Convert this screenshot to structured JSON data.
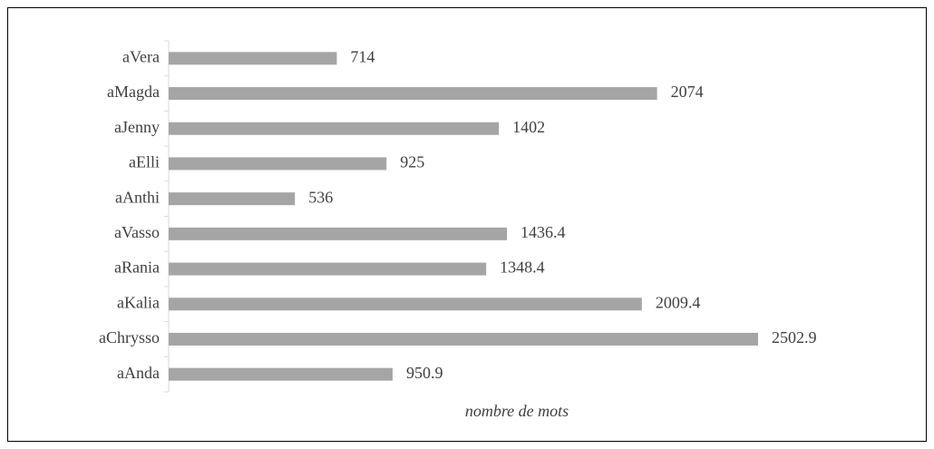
{
  "chart_data": {
    "type": "bar",
    "orientation": "horizontal",
    "x_label": "nombre de mots",
    "categories": [
      "aVera",
      "aMagda",
      "aJenny",
      "aElli",
      "aAnthi",
      "aVasso",
      "aRania",
      "aKalia",
      "aChrysso",
      "aAnda"
    ],
    "values": [
      714,
      2074,
      1402,
      925,
      536,
      1436.4,
      1348.4,
      2009.4,
      2502.9,
      950.9
    ],
    "color": "#a5a5a5"
  }
}
